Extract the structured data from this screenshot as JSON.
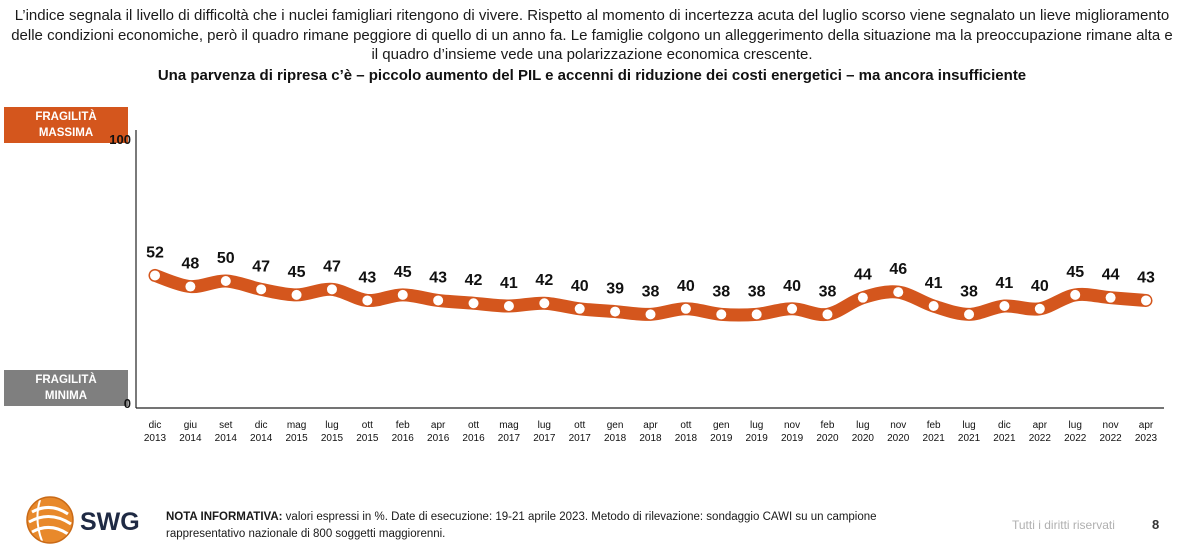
{
  "intro_text": "L’indice segnala il livello di difficoltà che i nuclei famigliari ritengono di vivere. Rispetto al momento di incertezza acuta del luglio scorso viene segnalato un lieve miglioramento delle condizioni economiche, però il quadro rimane peggiore di quello di un anno fa. Le famiglie colgono un alleggerimento della situazione ma la preoccupazione rimane alta e il quadro d’insieme vede una polarizzazione economica crescente.",
  "headline": "Una parvenza di ripresa c’è – piccolo aumento del PIL e accenni di riduzione dei costi energetici – ma ancora insufficiente",
  "tags": {
    "max_line1": "FRAGILITÀ",
    "max_line2": "MASSIMA",
    "min_line1": "FRAGILITÀ",
    "min_line2": "MINIMA"
  },
  "colors": {
    "series": "#d4561d",
    "max_tag": "#d4561d",
    "min_tag": "#7f7f7f"
  },
  "chart_data": {
    "type": "line",
    "ylim": [
      0,
      100
    ],
    "y_tick_labels": [
      "100",
      "0"
    ],
    "categories": [
      [
        "dic",
        "2013"
      ],
      [
        "giu",
        "2014"
      ],
      [
        "set",
        "2014"
      ],
      [
        "dic",
        "2014"
      ],
      [
        "mag",
        "2015"
      ],
      [
        "lug",
        "2015"
      ],
      [
        "ott",
        "2015"
      ],
      [
        "feb",
        "2016"
      ],
      [
        "apr",
        "2016"
      ],
      [
        "ott",
        "2016"
      ],
      [
        "mag",
        "2017"
      ],
      [
        "lug",
        "2017"
      ],
      [
        "ott",
        "2017"
      ],
      [
        "gen",
        "2018"
      ],
      [
        "apr",
        "2018"
      ],
      [
        "ott",
        "2018"
      ],
      [
        "gen",
        "2019"
      ],
      [
        "lug",
        "2019"
      ],
      [
        "nov",
        "2019"
      ],
      [
        "feb",
        "2020"
      ],
      [
        "lug",
        "2020"
      ],
      [
        "nov",
        "2020"
      ],
      [
        "feb",
        "2021"
      ],
      [
        "lug",
        "2021"
      ],
      [
        "dic",
        "2021"
      ],
      [
        "apr",
        "2022"
      ],
      [
        "lug",
        "2022"
      ],
      [
        "nov",
        "2022"
      ],
      [
        "apr",
        "2023"
      ]
    ],
    "values": [
      52,
      48,
      50,
      47,
      45,
      47,
      43,
      45,
      43,
      42,
      41,
      42,
      40,
      39,
      38,
      40,
      38,
      38,
      40,
      38,
      44,
      46,
      41,
      38,
      41,
      40,
      45,
      44,
      43
    ],
    "grid": false,
    "legend": "none"
  },
  "footer": {
    "note_label": "NOTA INFORMATIVA:",
    "note_text": " valori espressi in %. Date di esecuzione: 19-21 aprile 2023. Metodo di rilevazione: sondaggio CAWI su un campione rappresentativo nazionale di 800 soggetti maggiorenni.",
    "rights": "Tutti i diritti riservati",
    "page_number": "8",
    "logo_text": "SWG"
  }
}
